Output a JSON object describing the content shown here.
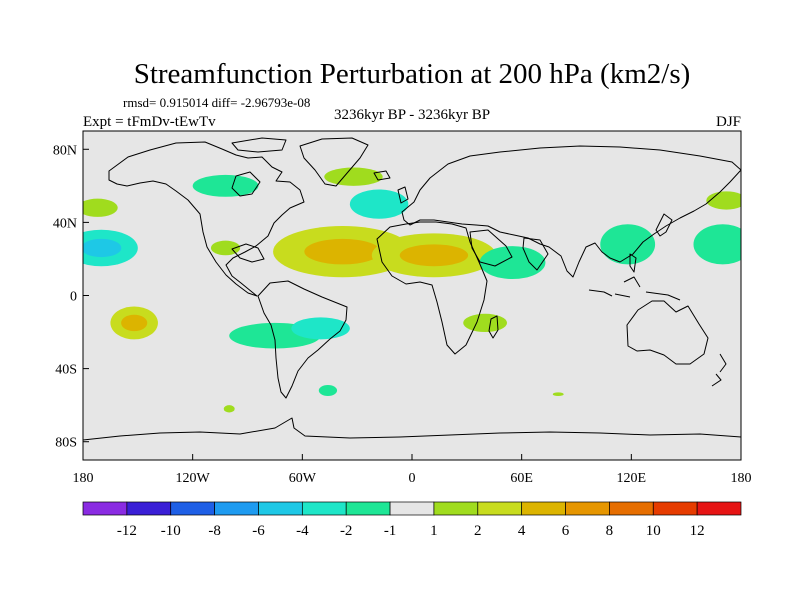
{
  "chart_data": {
    "type": "heatmap",
    "title": "Streamfunction Perturbation at 200 hPa (km2/s)",
    "stats_text": "rmsd= 0.915014  diff= -2.96793e-08",
    "experiment": "Expt = tFmDv-tEwTv",
    "period": "3236kyr BP - 3236kyr BP",
    "season": "DJF",
    "projection": "cylindrical equidistant",
    "lon_range": [
      -180,
      180
    ],
    "lat_range": [
      -90,
      90
    ],
    "x_ticks": [
      {
        "value": -180,
        "label": "180"
      },
      {
        "value": -120,
        "label": "120W"
      },
      {
        "value": -60,
        "label": "60W"
      },
      {
        "value": 0,
        "label": "0"
      },
      {
        "value": 60,
        "label": "60E"
      },
      {
        "value": 120,
        "label": "120E"
      },
      {
        "value": 180,
        "label": "180"
      }
    ],
    "y_ticks": [
      {
        "value": 80,
        "label": "80N"
      },
      {
        "value": 40,
        "label": "40N"
      },
      {
        "value": 0,
        "label": "0"
      },
      {
        "value": -40,
        "label": "40S"
      },
      {
        "value": -80,
        "label": "80S"
      }
    ],
    "colorbar": {
      "colors": [
        "#8a2be2",
        "#3a1fd6",
        "#1e5fe6",
        "#1e9bf0",
        "#1ec8e6",
        "#1ee6c8",
        "#1ee696",
        "#e6e6e6",
        "#a0dc1e",
        "#c8dc1e",
        "#dcb400",
        "#e69600",
        "#e66e00",
        "#e63c00",
        "#e61414"
      ],
      "labels": [
        "-12",
        "-10",
        "-8",
        "-6",
        "-4",
        "-2",
        "-1",
        "1",
        "2",
        "4",
        "6",
        "8",
        "10",
        "12"
      ]
    },
    "anomalies": [
      {
        "lon": -170,
        "lat": 26,
        "value": -3.5
      },
      {
        "lon": -172,
        "lat": 48,
        "value": 1.5
      },
      {
        "lon": -152,
        "lat": -15,
        "value": 3
      },
      {
        "lon": -102,
        "lat": 60,
        "value": -1.5
      },
      {
        "lon": -102,
        "lat": 26,
        "value": 1.5
      },
      {
        "lon": -38,
        "lat": 24,
        "value": 3
      },
      {
        "lon": -32,
        "lat": 65,
        "value": 1.5
      },
      {
        "lon": -18,
        "lat": 50,
        "value": -2
      },
      {
        "lon": 12,
        "lat": 22,
        "value": 3
      },
      {
        "lon": 55,
        "lat": 18,
        "value": -1.5
      },
      {
        "lon": 40,
        "lat": -15,
        "value": 1.5
      },
      {
        "lon": 118,
        "lat": 28,
        "value": -1.5
      },
      {
        "lon": 170,
        "lat": 28,
        "value": -1.5
      },
      {
        "lon": 172,
        "lat": 52,
        "value": 1.5
      },
      {
        "lon": -75,
        "lat": -22,
        "value": -1.5
      },
      {
        "lon": -50,
        "lat": -18,
        "value": -2.5
      },
      {
        "lon": -46,
        "lat": -52,
        "value": -1.5
      },
      {
        "lon": -100,
        "lat": -62,
        "value": 1.5
      },
      {
        "lon": 80,
        "lat": -54,
        "value": 1.5
      }
    ]
  }
}
